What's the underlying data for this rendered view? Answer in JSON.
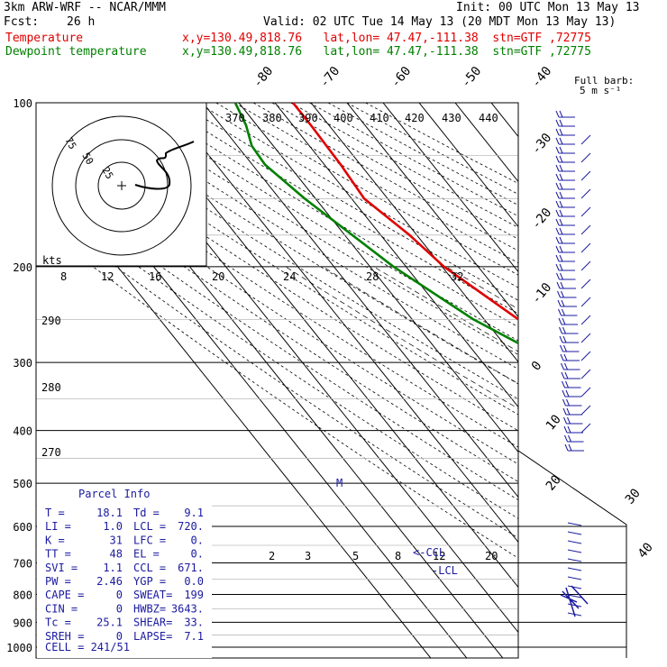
{
  "header": {
    "model": "3km ARW-WRF -- NCAR/MMM",
    "init": "Init: 00 UTC Mon 13 May 13",
    "fcst_label": "Fcst:",
    "fcst_value": "26 h",
    "valid": "Valid: 02 UTC Tue 14 May 13 (20 MDT Mon 13 May 13)",
    "temp_label": "Temperature",
    "temp_loc": "x,y=130.49,818.76   lat,lon= 47.47,-111.38  stn=GTF ,72775",
    "dew_label": "Dewpoint temperature",
    "dew_loc": "x,y=130.49,818.76   lat,lon= 47.47,-111.38  stn=GTF ,72775",
    "barb_note_1": "Full barb:",
    "barb_note_2": "5 m s⁻¹"
  },
  "chart_data": {
    "type": "line",
    "pressure_ticks": [
      "100",
      "200",
      "300",
      "400",
      "500",
      "600",
      "700",
      "800",
      "900",
      "1000"
    ],
    "top_temp_labels": [
      "-80",
      "-70",
      "-60",
      "-50",
      "-40"
    ],
    "right_temp_labels": [
      "-30",
      "-20",
      "-10",
      "0",
      "10",
      "20",
      "30",
      "40"
    ],
    "theta_labels": [
      "370",
      "380",
      "390",
      "400",
      "410",
      "420",
      "430",
      "440"
    ],
    "speed_axis_label": "kts",
    "speed_labels": [
      "8",
      "12",
      "16",
      "20",
      "24",
      "28",
      "32"
    ],
    "left_theta_labels": [
      "290",
      "280",
      "270"
    ],
    "mixing_ratio_labels": [
      "2",
      "3",
      "5",
      "8",
      "12",
      "20"
    ],
    "hodograph_rings": [
      "75",
      "50",
      "25"
    ],
    "marker_m": "M",
    "ccl_label": "<-CCL",
    "lcl_label": "-LCL",
    "series": [
      {
        "name": "Temperature",
        "color": "#e00000",
        "points": [
          [
            880,
            -3.5
          ],
          [
            850,
            -2.5
          ],
          [
            800,
            -4.0
          ],
          [
            750,
            -3.0
          ],
          [
            700,
            -2.2
          ],
          [
            650,
            -3.5
          ],
          [
            600,
            -5.0
          ],
          [
            550,
            -8.5
          ],
          [
            500,
            -12.5
          ],
          [
            450,
            -16.5
          ],
          [
            420,
            -20.0
          ],
          [
            380,
            -24.0
          ],
          [
            350,
            -28.0
          ],
          [
            300,
            -33.5
          ],
          [
            250,
            -40.5
          ],
          [
            200,
            -49.5
          ],
          [
            175,
            -52.0
          ],
          [
            150,
            -56.5
          ],
          [
            130,
            -55.5
          ],
          [
            110,
            -55.0
          ],
          [
            100,
            -55.0
          ]
        ]
      },
      {
        "name": "Dewpoint temperature",
        "color": "#008000",
        "points": [
          [
            880,
            -12.0
          ],
          [
            850,
            -14.0
          ],
          [
            800,
            -15.5
          ],
          [
            750,
            -15.0
          ],
          [
            700,
            -11.5
          ],
          [
            650,
            -9.0
          ],
          [
            600,
            -8.5
          ],
          [
            550,
            -10.5
          ],
          [
            500,
            -13.5
          ],
          [
            450,
            -18.0
          ],
          [
            400,
            -24.0
          ],
          [
            350,
            -31.0
          ],
          [
            300,
            -40.0
          ],
          [
            250,
            -53.0
          ],
          [
            200,
            -63.5
          ],
          [
            150,
            -73.0
          ],
          [
            130,
            -76.5
          ],
          [
            120,
            -76.0
          ],
          [
            110,
            -73.0
          ],
          [
            100,
            -71.0
          ]
        ]
      }
    ]
  },
  "stats": {
    "title": "Parcel Info",
    "rows": [
      [
        "T  =",
        "18.1",
        "Td =",
        "9.1"
      ],
      [
        "LI =",
        "1.0",
        "LCL =",
        "720."
      ],
      [
        "K  =",
        "31",
        "LFC =",
        "0."
      ],
      [
        "TT =",
        "48",
        "EL =",
        "0."
      ],
      [
        "SVI =",
        "1.1",
        "CCL =",
        "671."
      ],
      [
        "PW =",
        "2.46",
        "YGP =",
        "0.0"
      ],
      [
        "CAPE =",
        "0",
        "SWEAT=",
        "199"
      ],
      [
        "CIN =",
        "0",
        "HWBZ=",
        "3643."
      ],
      [
        "Tc =",
        "25.1",
        "SHEAR=",
        "33."
      ],
      [
        "SREH =",
        "0",
        "LAPSE=",
        "7.1"
      ]
    ],
    "cell": "CELL = 241/51"
  }
}
